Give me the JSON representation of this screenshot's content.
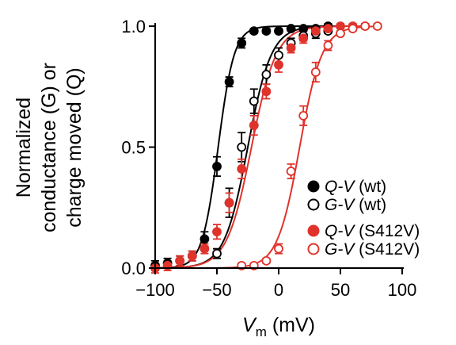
{
  "chart_data": {
    "type": "scatter",
    "x_axis": {
      "label_main": "V",
      "label_sub": "m",
      "label_unit": " (mV)",
      "range": [
        -100,
        100
      ],
      "ticks": [
        -100,
        -50,
        0,
        50,
        100
      ],
      "tick_labels": [
        "−100",
        "−50",
        "0",
        "50",
        "100"
      ]
    },
    "y_axis": {
      "label_lines": [
        "Normalized",
        "conductance (G) or",
        "charge moved (Q)"
      ],
      "range": [
        0,
        1
      ],
      "ticks": [
        0,
        0.5,
        1
      ],
      "tick_labels": [
        "0.0",
        "0.5",
        "1.0"
      ]
    },
    "series": [
      {
        "legend_italic": "Q-V",
        "legend_suffix": " (wt)",
        "color": "#000000",
        "filled": true,
        "fit": {
          "v_half": -49,
          "k": 6.5
        },
        "points": [
          {
            "x": -100,
            "y": 0.01,
            "err": 0.02
          },
          {
            "x": -90,
            "y": 0.02,
            "err": 0.02
          },
          {
            "x": -80,
            "y": 0.03,
            "err": 0.02
          },
          {
            "x": -70,
            "y": 0.05,
            "err": 0.02
          },
          {
            "x": -60,
            "y": 0.12,
            "err": 0.03
          },
          {
            "x": -50,
            "y": 0.42,
            "err": 0.04
          },
          {
            "x": -40,
            "y": 0.77,
            "err": 0.02
          },
          {
            "x": -30,
            "y": 0.93,
            "err": 0.02
          },
          {
            "x": -20,
            "y": 0.98,
            "err": 0.01
          },
          {
            "x": -10,
            "y": 0.98,
            "err": 0.01
          },
          {
            "x": 0,
            "y": 0.98,
            "err": 0.01
          },
          {
            "x": 10,
            "y": 0.99,
            "err": 0.01
          },
          {
            "x": 20,
            "y": 0.99,
            "err": 0.01
          },
          {
            "x": 30,
            "y": 0.99,
            "err": 0.01
          },
          {
            "x": 40,
            "y": 1.0,
            "err": 0.01
          }
        ]
      },
      {
        "legend_italic": "G-V",
        "legend_suffix": " (wt)",
        "color": "#000000",
        "filled": false,
        "fit": {
          "v_half": -25,
          "k": 9.5
        },
        "points": [
          {
            "x": -50,
            "y": 0.06,
            "err": 0.02
          },
          {
            "x": -40,
            "y": 0.27,
            "err": 0.06
          },
          {
            "x": -30,
            "y": 0.5,
            "err": 0.06
          },
          {
            "x": -20,
            "y": 0.69,
            "err": 0.05
          },
          {
            "x": -10,
            "y": 0.8,
            "err": 0.04
          },
          {
            "x": 0,
            "y": 0.88,
            "err": 0.03
          },
          {
            "x": 10,
            "y": 0.93,
            "err": 0.02
          },
          {
            "x": 20,
            "y": 0.96,
            "err": 0.02
          },
          {
            "x": 30,
            "y": 0.97,
            "err": 0.02
          },
          {
            "x": 40,
            "y": 0.98,
            "err": 0.01
          }
        ]
      },
      {
        "legend_italic": "Q-V",
        "legend_suffix": " (S412V)",
        "color": "#e0332b",
        "filled": true,
        "fit": {
          "v_half": -22,
          "k": 10
        },
        "points": [
          {
            "x": -100,
            "y": 0.0,
            "err": 0.02
          },
          {
            "x": -90,
            "y": 0.01,
            "err": 0.02
          },
          {
            "x": -80,
            "y": 0.03,
            "err": 0.02
          },
          {
            "x": -70,
            "y": 0.05,
            "err": 0.02
          },
          {
            "x": -60,
            "y": 0.08,
            "err": 0.02
          },
          {
            "x": -50,
            "y": 0.15,
            "err": 0.03
          },
          {
            "x": -40,
            "y": 0.27,
            "err": 0.04
          },
          {
            "x": -30,
            "y": 0.41,
            "err": 0.04
          },
          {
            "x": -20,
            "y": 0.59,
            "err": 0.04
          },
          {
            "x": -10,
            "y": 0.73,
            "err": 0.03
          },
          {
            "x": 0,
            "y": 0.84,
            "err": 0.03
          },
          {
            "x": 10,
            "y": 0.91,
            "err": 0.02
          },
          {
            "x": 20,
            "y": 0.95,
            "err": 0.02
          },
          {
            "x": 30,
            "y": 0.98,
            "err": 0.01
          },
          {
            "x": 40,
            "y": 0.99,
            "err": 0.01
          },
          {
            "x": 50,
            "y": 1.0,
            "err": 0.01
          },
          {
            "x": 60,
            "y": 1.0,
            "err": 0.01
          },
          {
            "x": 70,
            "y": 1.0,
            "err": 0.01
          }
        ]
      },
      {
        "legend_italic": "G-V",
        "legend_suffix": " (S412V)",
        "color": "#e0332b",
        "filled": false,
        "fit": {
          "v_half": 17,
          "k": 9
        },
        "points": [
          {
            "x": -30,
            "y": 0.01,
            "err": 0.01
          },
          {
            "x": -20,
            "y": 0.01,
            "err": 0.01
          },
          {
            "x": -10,
            "y": 0.03,
            "err": 0.01
          },
          {
            "x": 0,
            "y": 0.08,
            "err": 0.02
          },
          {
            "x": 10,
            "y": 0.4,
            "err": 0.03
          },
          {
            "x": 20,
            "y": 0.63,
            "err": 0.04
          },
          {
            "x": 30,
            "y": 0.81,
            "err": 0.04
          },
          {
            "x": 40,
            "y": 0.92,
            "err": 0.02
          },
          {
            "x": 50,
            "y": 0.97,
            "err": 0.01
          },
          {
            "x": 60,
            "y": 0.99,
            "err": 0.01
          },
          {
            "x": 70,
            "y": 1.0,
            "err": 0.01
          },
          {
            "x": 80,
            "y": 1.0,
            "err": 0.01
          }
        ]
      }
    ]
  }
}
